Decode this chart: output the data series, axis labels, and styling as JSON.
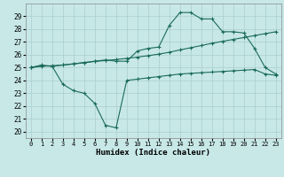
{
  "x": [
    0,
    1,
    2,
    3,
    4,
    5,
    6,
    7,
    8,
    9,
    10,
    11,
    12,
    13,
    14,
    15,
    16,
    17,
    18,
    19,
    20,
    21,
    22,
    23
  ],
  "line_top": [
    25.0,
    25.2,
    25.1,
    25.2,
    25.3,
    25.4,
    25.5,
    25.6,
    25.5,
    25.5,
    26.3,
    26.5,
    26.6,
    28.3,
    29.3,
    29.3,
    28.8,
    28.8,
    27.8,
    27.8,
    27.7,
    26.5,
    25.0,
    24.5
  ],
  "line_mid": [
    25.0,
    25.1,
    25.15,
    25.2,
    25.28,
    25.38,
    25.48,
    25.55,
    25.63,
    25.72,
    25.82,
    25.93,
    26.05,
    26.2,
    26.38,
    26.55,
    26.72,
    26.9,
    27.05,
    27.2,
    27.35,
    27.5,
    27.65,
    27.8
  ],
  "line_bot": [
    25.0,
    25.15,
    25.1,
    23.7,
    23.2,
    23.0,
    22.2,
    20.5,
    20.3,
    24.0,
    24.1,
    24.2,
    24.3,
    24.4,
    24.5,
    24.55,
    24.6,
    24.65,
    24.7,
    24.75,
    24.8,
    24.85,
    24.5,
    24.4
  ],
  "bg_color": "#c8e8e8",
  "line_color": "#1a6b5a",
  "grid_color": "#aacece",
  "xlabel": "Humidex (Indice chaleur)",
  "xlim": [
    -0.5,
    23.5
  ],
  "ylim": [
    19.5,
    30.0
  ],
  "yticks": [
    20,
    21,
    22,
    23,
    24,
    25,
    26,
    27,
    28,
    29
  ],
  "xticks": [
    0,
    1,
    2,
    3,
    4,
    5,
    6,
    7,
    8,
    9,
    10,
    11,
    12,
    13,
    14,
    15,
    16,
    17,
    18,
    19,
    20,
    21,
    22,
    23
  ]
}
